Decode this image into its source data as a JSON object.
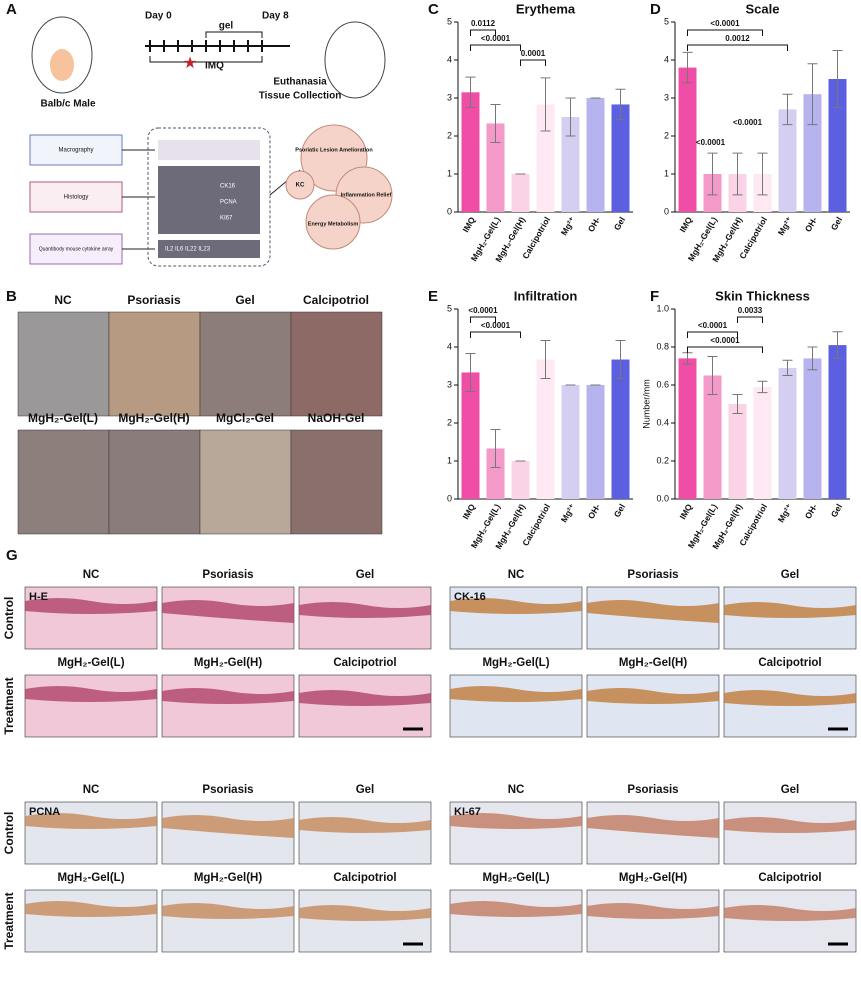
{
  "panel_labels": [
    "A",
    "B",
    "C",
    "D",
    "E",
    "F",
    "G"
  ],
  "schematic": {
    "day0": "Day 0",
    "day8": "Day 8",
    "gel": "gel",
    "imq": "IMQ",
    "mouse": "Balb/c Male",
    "euthanasia": "Euthanasia",
    "collection": "Tissue Collection",
    "methods": [
      "Macrography",
      "Histology",
      "Quantibody mouse cytokine array"
    ],
    "readouts": [
      "CK16",
      "PCNA",
      "KI67",
      "IL2 IL6 IL22 IL23"
    ],
    "outcomes": [
      "Psoriatic Lesion Amelioration",
      "KC",
      "Inflammation Relief",
      "Energy Metabolism"
    ]
  },
  "photo_labels": [
    "NC",
    "Psoriasis",
    "Gel",
    "Calcipotriol",
    "MgH₂-Gel(L)",
    "MgH₂-Gel(H)",
    "MgCl₂-Gel",
    "NaOH-Gel"
  ],
  "chart_data": [
    {
      "type": "bar",
      "title": "Erythema",
      "categories": [
        "IMQ",
        "MgH₂-Gel(L)",
        "MgH₂-Gel(H)",
        "Calcipotriol",
        "Mg²⁺",
        "OH-",
        "Gel"
      ],
      "colors": [
        "#f04ea6",
        "#f39ac8",
        "#fbd3e7",
        "#fde8f3",
        "#d4cff0",
        "#b7b3ee",
        "#5b5fe0"
      ],
      "values": [
        3.15,
        2.33,
        1.0,
        2.83,
        2.5,
        3.0,
        2.83
      ],
      "errors": [
        0.4,
        0.5,
        0,
        0.7,
        0.5,
        0,
        0.4
      ],
      "ylim": [
        0,
        5
      ],
      "yticks": [
        0,
        1,
        2,
        3,
        4,
        5
      ],
      "brackets": [
        {
          "groups": [
            "IMQ",
            "MgH₂-Gel(L)"
          ],
          "label": "0.0112"
        },
        {
          "groups": [
            "IMQ",
            "MgH₂-Gel(H)"
          ],
          "label": "<0.0001"
        },
        {
          "groups": [
            "MgH₂-Gel(H)",
            "Calcipotriol"
          ],
          "label": "0.0001"
        }
      ]
    },
    {
      "type": "bar",
      "title": "Scale",
      "categories": [
        "IMQ",
        "MgH₂-Gel(L)",
        "MgH₂-Gel(H)",
        "Calcipotriol",
        "Mg²⁺",
        "OH-",
        "Gel"
      ],
      "colors": [
        "#f04ea6",
        "#f39ac8",
        "#fbd3e7",
        "#fde8f3",
        "#d4cff0",
        "#b7b3ee",
        "#5b5fe0"
      ],
      "values": [
        3.8,
        1.0,
        1.0,
        1.0,
        2.7,
        3.1,
        3.5
      ],
      "errors": [
        0.4,
        0.55,
        0.55,
        0.55,
        0.4,
        0.8,
        0.75
      ],
      "ylim": [
        0,
        5
      ],
      "yticks": [
        0,
        1,
        2,
        3,
        4,
        5
      ],
      "brackets": [
        {
          "groups": [
            "IMQ",
            "Calcipotriol"
          ],
          "label": "<0.0001"
        },
        {
          "groups": [
            "IMQ",
            "Mg²⁺"
          ],
          "label": "0.0012"
        }
      ],
      "annotations": [
        {
          "group": "MgH₂-Gel(L)",
          "label": "<0.0001"
        },
        {
          "group": "MgH₂-Gel(H)",
          "label": "<0.0001"
        }
      ]
    },
    {
      "type": "bar",
      "title": "Infiltration",
      "categories": [
        "IMQ",
        "MgH₂-Gel(L)",
        "MgH₂-Gel(H)",
        "Calcipotriol",
        "Mg²⁺",
        "OH-",
        "Gel"
      ],
      "colors": [
        "#f04ea6",
        "#f39ac8",
        "#fbd3e7",
        "#fde8f3",
        "#d4cff0",
        "#b7b3ee",
        "#5b5fe0"
      ],
      "values": [
        3.33,
        1.33,
        1.0,
        3.67,
        3.0,
        3.0,
        3.67
      ],
      "errors": [
        0.5,
        0.5,
        0,
        0.5,
        0,
        0,
        0.5
      ],
      "ylim": [
        0,
        5
      ],
      "yticks": [
        0,
        1,
        2,
        3,
        4,
        5
      ],
      "brackets": [
        {
          "groups": [
            "IMQ",
            "MgH₂-Gel(L)"
          ],
          "label": "<0.0001"
        },
        {
          "groups": [
            "IMQ",
            "MgH₂-Gel(H)"
          ],
          "label": "<0.0001"
        }
      ]
    },
    {
      "type": "bar",
      "title": "Skin Thickness",
      "y_label": "Number/mm",
      "categories": [
        "IMQ",
        "MgH₂-Gel(L)",
        "MgH₂-Gel(H)",
        "Calcipotriol",
        "Mg²⁺",
        "OH-",
        "Gel"
      ],
      "colors": [
        "#f04ea6",
        "#f39ac8",
        "#fbd3e7",
        "#fde8f3",
        "#d4cff0",
        "#b7b3ee",
        "#5b5fe0"
      ],
      "values": [
        0.74,
        0.65,
        0.5,
        0.59,
        0.69,
        0.74,
        0.81
      ],
      "errors": [
        0.03,
        0.1,
        0.05,
        0.03,
        0.04,
        0.06,
        0.07
      ],
      "ylim": [
        0,
        1
      ],
      "yticks": [
        {
          "value": 0,
          "label": "0.0"
        },
        0.2,
        0.4,
        0.6,
        0.8,
        {
          "value": 1,
          "label": "1.0"
        }
      ],
      "brackets": [
        {
          "groups": [
            "MgH₂-Gel(H)",
            "Calcipotriol"
          ],
          "label": "0.0033"
        },
        {
          "groups": [
            "IMQ",
            "MgH₂-Gel(H)"
          ],
          "label": "<0.0001"
        },
        {
          "groups": [
            "IMQ",
            "Calcipotriol"
          ],
          "label": "<0.0001"
        }
      ]
    }
  ],
  "histology": {
    "row_labels": [
      "Control",
      "Treatment"
    ],
    "stains": [
      "H-E",
      "CK-16",
      "PCNA",
      "KI-67"
    ],
    "control_groups": [
      "NC",
      "Psoriasis",
      "Gel"
    ],
    "treatment_groups": [
      "MgH₂-Gel(L)",
      "MgH₂-Gel(H)",
      "Calcipotriol"
    ]
  }
}
